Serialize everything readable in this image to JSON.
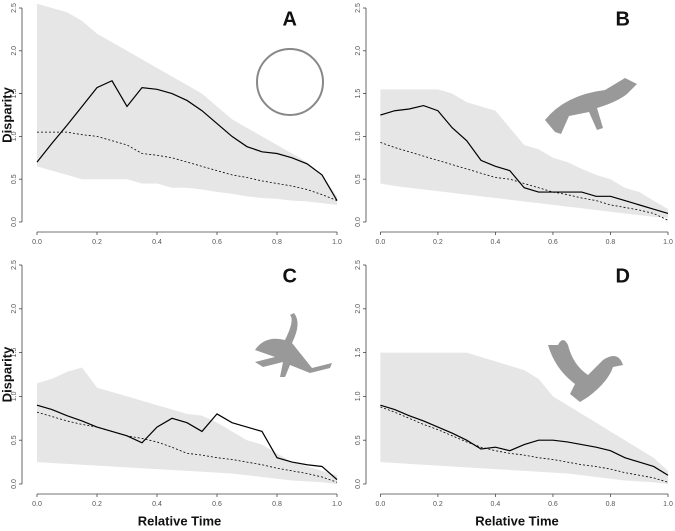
{
  "chart_data": [
    {
      "type": "line",
      "label": "A",
      "y_label": "Disparity",
      "xlim": [
        -0.05,
        1.0
      ],
      "ylim": [
        0,
        2.5
      ],
      "xticks": [
        {
          "value": 0,
          "label": "0.0"
        },
        0.2,
        0.4,
        0.6,
        0.8,
        {
          "value": 1,
          "label": "1.0"
        }
      ],
      "yticks": [
        {
          "value": 0,
          "label": "0.0"
        },
        0.5,
        {
          "value": 1,
          "label": "1.0"
        },
        1.5,
        {
          "value": 2,
          "label": "2.0"
        },
        2.5
      ],
      "x": [
        0,
        0.05,
        0.1,
        0.15,
        0.2,
        0.25,
        0.3,
        0.35,
        0.4,
        0.45,
        0.5,
        0.55,
        0.6,
        0.65,
        0.7,
        0.75,
        0.8,
        0.85,
        0.9,
        0.95,
        1
      ],
      "band": {
        "color": "#e6e6e6",
        "upper": [
          2.55,
          2.5,
          2.45,
          2.35,
          2.2,
          2.1,
          2.0,
          1.9,
          1.8,
          1.7,
          1.6,
          1.5,
          1.35,
          1.2,
          1.1,
          1.0,
          0.9,
          0.8,
          0.7,
          0.55,
          0.3
        ],
        "lower": [
          0.65,
          0.6,
          0.55,
          0.5,
          0.5,
          0.5,
          0.5,
          0.45,
          0.45,
          0.4,
          0.4,
          0.38,
          0.35,
          0.33,
          0.3,
          0.28,
          0.27,
          0.25,
          0.24,
          0.22,
          0.2
        ]
      },
      "series": [
        {
          "color": "#000000",
          "style": "solid",
          "values": [
            0.7,
            0.92,
            1.13,
            1.35,
            1.57,
            1.65,
            1.35,
            1.57,
            1.55,
            1.5,
            1.42,
            1.3,
            1.15,
            1.0,
            0.88,
            0.82,
            0.8,
            0.75,
            0.68,
            0.55,
            0.25
          ]
        },
        {
          "color": "#000000",
          "style": "dashed",
          "values": [
            1.05,
            1.05,
            1.05,
            1.02,
            1.0,
            0.95,
            0.9,
            0.8,
            0.78,
            0.75,
            0.7,
            0.65,
            0.6,
            0.55,
            0.52,
            0.48,
            0.45,
            0.42,
            0.38,
            0.32,
            0.25
          ]
        }
      ]
    },
    {
      "type": "line",
      "label": "B",
      "xlim": [
        -0.05,
        1.0
      ],
      "ylim": [
        0,
        2.5
      ],
      "xticks": [
        {
          "value": 0,
          "label": "0.0"
        },
        0.2,
        0.4,
        0.6,
        0.8,
        {
          "value": 1,
          "label": "1.0"
        }
      ],
      "yticks": [
        {
          "value": 0,
          "label": "0.0"
        },
        0.5,
        {
          "value": 1,
          "label": "1.0"
        },
        1.5,
        {
          "value": 2,
          "label": "2.0"
        },
        2.5
      ],
      "x": [
        0,
        0.05,
        0.1,
        0.15,
        0.2,
        0.25,
        0.3,
        0.35,
        0.4,
        0.45,
        0.5,
        0.55,
        0.6,
        0.65,
        0.7,
        0.75,
        0.8,
        0.85,
        0.9,
        0.95,
        1
      ],
      "band": {
        "color": "#e6e6e6",
        "upper": [
          1.55,
          1.55,
          1.55,
          1.55,
          1.55,
          1.5,
          1.4,
          1.35,
          1.3,
          1.1,
          0.9,
          0.85,
          0.75,
          0.7,
          0.62,
          0.55,
          0.5,
          0.4,
          0.35,
          0.25,
          0.15
        ],
        "lower": [
          0.45,
          0.42,
          0.4,
          0.38,
          0.36,
          0.34,
          0.32,
          0.3,
          0.28,
          0.26,
          0.24,
          0.22,
          0.2,
          0.18,
          0.16,
          0.14,
          0.12,
          0.1,
          0.08,
          0.06,
          0.05
        ]
      },
      "series": [
        {
          "color": "#000000",
          "style": "solid",
          "values": [
            1.25,
            1.3,
            1.32,
            1.36,
            1.3,
            1.1,
            0.95,
            0.72,
            0.65,
            0.6,
            0.4,
            0.35,
            0.35,
            0.35,
            0.35,
            0.3,
            0.3,
            0.25,
            0.2,
            0.15,
            0.1
          ]
        },
        {
          "color": "#000000",
          "style": "dashed",
          "values": [
            0.93,
            0.87,
            0.82,
            0.77,
            0.72,
            0.67,
            0.62,
            0.57,
            0.52,
            0.5,
            0.45,
            0.4,
            0.35,
            0.32,
            0.28,
            0.25,
            0.2,
            0.17,
            0.14,
            0.1,
            0.02
          ]
        }
      ]
    },
    {
      "type": "line",
      "label": "C",
      "y_label": "Disparity",
      "x_label": "Relative Time",
      "xlim": [
        -0.05,
        1.0
      ],
      "ylim": [
        0,
        2.5
      ],
      "xticks": [
        {
          "value": 0,
          "label": "0.0"
        },
        0.2,
        0.4,
        0.6,
        0.8,
        {
          "value": 1,
          "label": "1.0"
        }
      ],
      "yticks": [
        {
          "value": 0,
          "label": "0.0"
        },
        0.5,
        {
          "value": 1,
          "label": "1.0"
        },
        1.5,
        {
          "value": 2,
          "label": "2.0"
        },
        2.5
      ],
      "x": [
        0,
        0.05,
        0.1,
        0.15,
        0.2,
        0.25,
        0.3,
        0.35,
        0.4,
        0.45,
        0.5,
        0.55,
        0.6,
        0.65,
        0.7,
        0.75,
        0.8,
        0.85,
        0.9,
        0.95,
        1
      ],
      "band": {
        "color": "#e6e6e6",
        "upper": [
          1.15,
          1.2,
          1.28,
          1.33,
          1.1,
          1.05,
          1.0,
          0.95,
          0.9,
          0.85,
          0.8,
          0.78,
          0.7,
          0.6,
          0.5,
          0.45,
          0.35,
          0.25,
          0.2,
          0.15,
          0.1
        ],
        "lower": [
          0.25,
          0.24,
          0.23,
          0.22,
          0.21,
          0.2,
          0.19,
          0.18,
          0.17,
          0.16,
          0.15,
          0.14,
          0.13,
          0.12,
          0.1,
          0.08,
          0.06,
          0.04,
          0.03,
          0.02,
          0
        ]
      },
      "series": [
        {
          "color": "#000000",
          "style": "solid",
          "values": [
            0.9,
            0.85,
            0.78,
            0.72,
            0.65,
            0.6,
            0.55,
            0.47,
            0.65,
            0.75,
            0.7,
            0.6,
            0.8,
            0.7,
            0.65,
            0.6,
            0.3,
            0.25,
            0.22,
            0.2,
            0.05
          ]
        },
        {
          "color": "#000000",
          "style": "dashed",
          "values": [
            0.82,
            0.77,
            0.72,
            0.68,
            0.65,
            0.6,
            0.55,
            0.52,
            0.48,
            0.42,
            0.35,
            0.33,
            0.3,
            0.28,
            0.25,
            0.22,
            0.18,
            0.15,
            0.12,
            0.08,
            0.02
          ]
        }
      ]
    },
    {
      "type": "line",
      "label": "D",
      "x_label": "Relative Time",
      "xlim": [
        -0.05,
        1.0
      ],
      "ylim": [
        0,
        2.5
      ],
      "xticks": [
        {
          "value": 0,
          "label": "0.0"
        },
        0.2,
        0.4,
        0.6,
        0.8,
        {
          "value": 1,
          "label": "1.0"
        }
      ],
      "yticks": [
        {
          "value": 0,
          "label": "0.0"
        },
        0.5,
        {
          "value": 1,
          "label": "1.0"
        },
        1.5,
        {
          "value": 2,
          "label": "2.0"
        },
        2.5
      ],
      "x": [
        0,
        0.05,
        0.1,
        0.15,
        0.2,
        0.25,
        0.3,
        0.35,
        0.4,
        0.45,
        0.5,
        0.55,
        0.6,
        0.65,
        0.7,
        0.75,
        0.8,
        0.85,
        0.9,
        0.95,
        1
      ],
      "band": {
        "color": "#e6e6e6",
        "upper": [
          1.5,
          1.5,
          1.5,
          1.5,
          1.5,
          1.5,
          1.5,
          1.45,
          1.4,
          1.35,
          1.3,
          1.2,
          1.0,
          0.9,
          0.8,
          0.7,
          0.6,
          0.5,
          0.4,
          0.3,
          0.15
        ],
        "lower": [
          0.25,
          0.24,
          0.23,
          0.22,
          0.21,
          0.2,
          0.19,
          0.18,
          0.17,
          0.16,
          0.15,
          0.14,
          0.13,
          0.12,
          0.1,
          0.08,
          0.06,
          0.04,
          0.03,
          0.02,
          0
        ]
      },
      "series": [
        {
          "color": "#000000",
          "style": "solid",
          "values": [
            0.9,
            0.85,
            0.78,
            0.72,
            0.65,
            0.58,
            0.5,
            0.4,
            0.42,
            0.38,
            0.45,
            0.5,
            0.5,
            0.48,
            0.45,
            0.42,
            0.38,
            0.3,
            0.25,
            0.2,
            0.1
          ]
        },
        {
          "color": "#000000",
          "style": "dashed",
          "values": [
            0.88,
            0.82,
            0.75,
            0.68,
            0.62,
            0.55,
            0.48,
            0.42,
            0.38,
            0.35,
            0.33,
            0.3,
            0.28,
            0.25,
            0.22,
            0.2,
            0.17,
            0.13,
            0.1,
            0.07,
            0.02
          ]
        }
      ]
    }
  ]
}
